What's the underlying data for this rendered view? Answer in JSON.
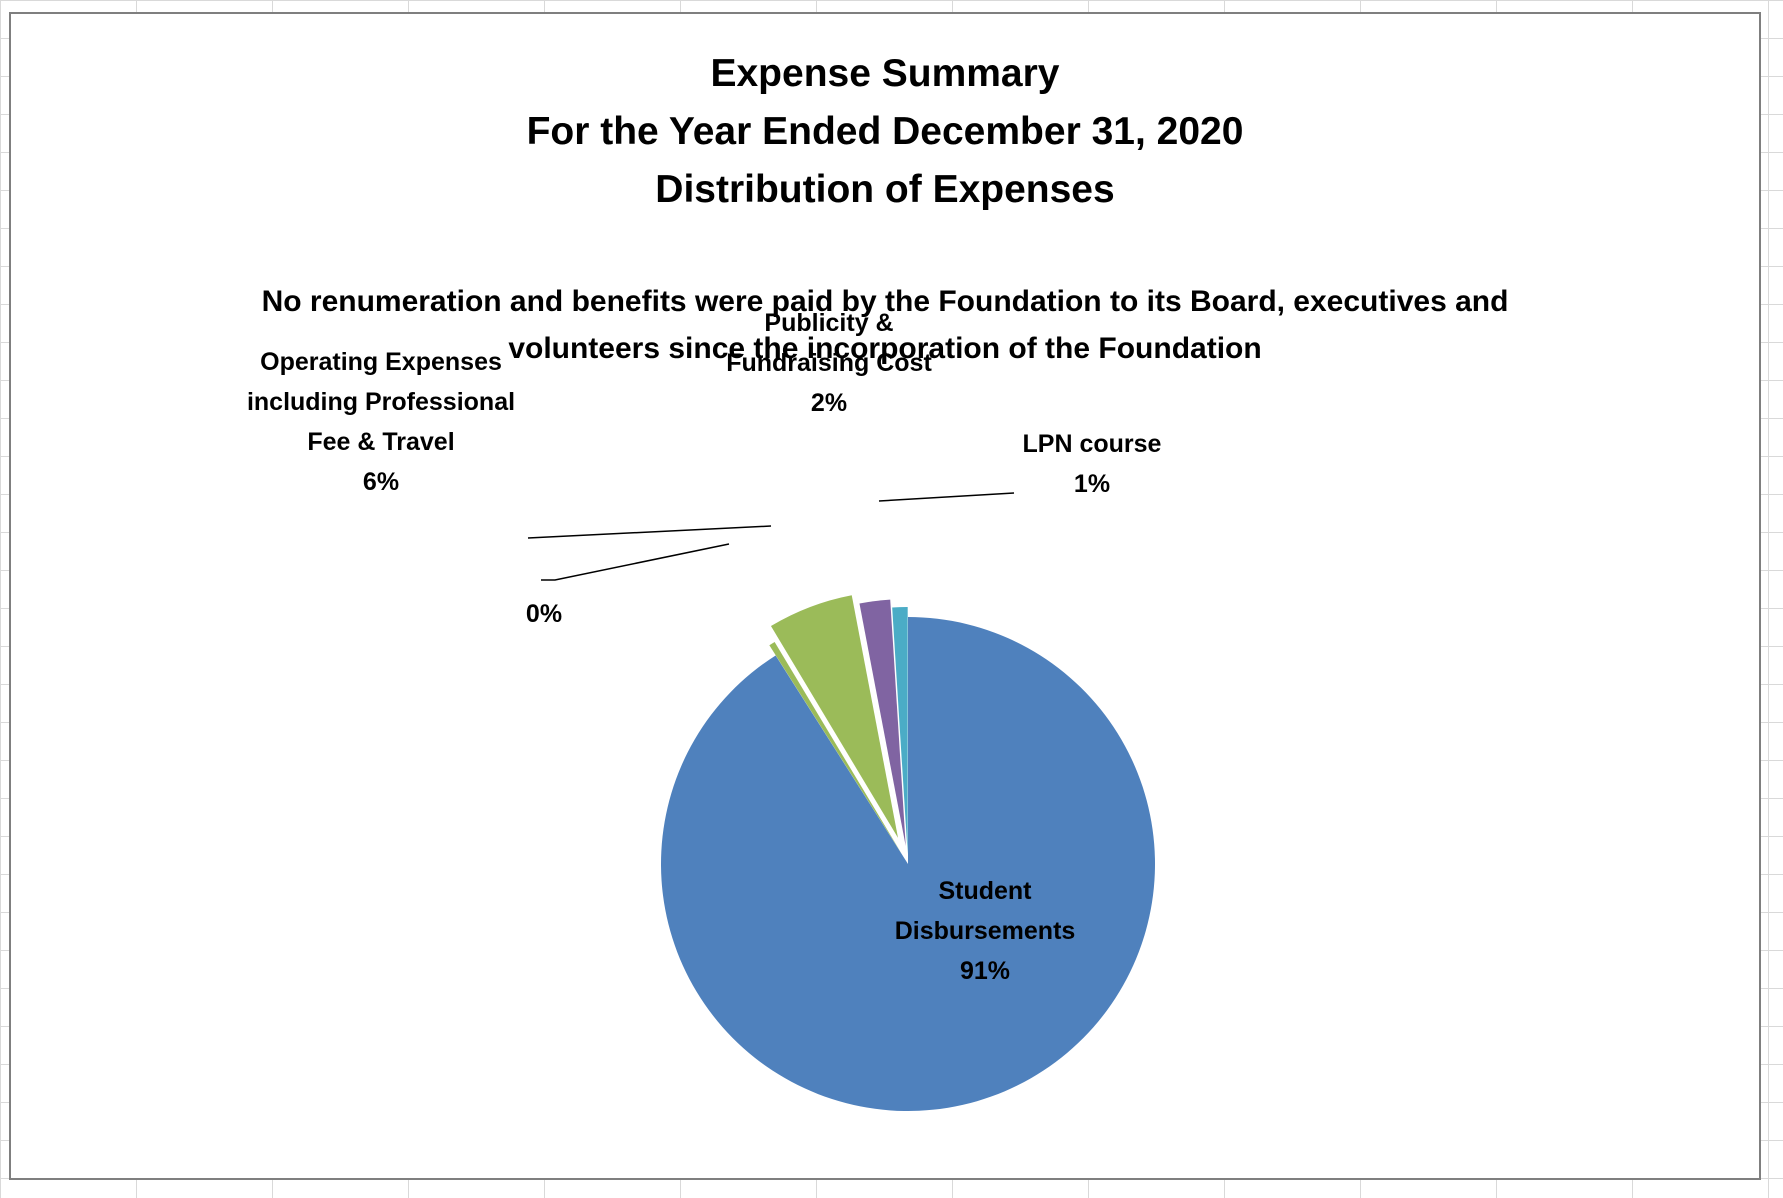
{
  "chart_data": {
    "type": "pie",
    "title_lines": [
      "Expense Summary",
      "For the Year Ended December 31, 2020",
      "Distribution of Expenses"
    ],
    "subtitle_lines": [
      "No renumeration and benefits were paid by the Foundation to its Board, executives and",
      "volunteers since the incorporation of the Foundation"
    ],
    "legend": "none",
    "slices": [
      {
        "label_lines": [
          "Student",
          "Disbursements"
        ],
        "percent_label": "91%",
        "value": 91,
        "color": "#4F81BD"
      },
      {
        "label_lines": [],
        "percent_label": "0%",
        "value": 0.4,
        "color": "#9BBB59"
      },
      {
        "label_lines": [
          "Operating Expenses",
          "including Professional",
          "Fee & Travel"
        ],
        "percent_label": "6%",
        "value": 5.6,
        "color": "#9BBB59"
      },
      {
        "label_lines": [
          "Publicity &",
          "Fundraising Cost"
        ],
        "percent_label": "2%",
        "value": 2.0,
        "color": "#8064A2"
      },
      {
        "label_lines": [
          "LPN course"
        ],
        "percent_label": "1%",
        "value": 1.0,
        "color": "#4BACC6"
      }
    ]
  }
}
